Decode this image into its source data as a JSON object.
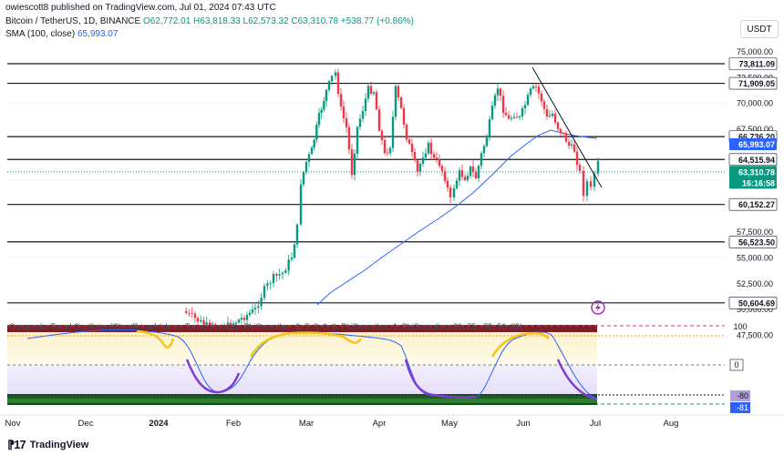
{
  "header": {
    "publisher": "owiescott8 published on TradingView.com, Jul 01, 2024 07:43 UTC",
    "symbol": "Bitcoin / TetherUS, 1D, BINANCE",
    "open": "O62,772.01",
    "high": "H63,818.33",
    "low": "L62,573.32",
    "close": "C63,310.78",
    "change": "+538.77 (+0.86%)",
    "sma_label": "SMA (100, close)",
    "sma_value": "65,993.07"
  },
  "currency": "USDT",
  "price_axis": {
    "ticks": [
      "75,000.00",
      "72,500.00",
      "70,000.00",
      "67,500.00",
      "62,500.00",
      "57,500.00",
      "55,000.00",
      "52,500.00",
      "50,000.00",
      "47,500.00"
    ],
    "levels": [
      {
        "label": "73,811.09",
        "value": 73811.09
      },
      {
        "label": "71,909.05",
        "value": 71909.05
      },
      {
        "label": "66,736.20",
        "value": 66736.2
      },
      {
        "label": "64,515.94",
        "value": 64515.94
      },
      {
        "label": "60,152.27",
        "value": 60152.27
      },
      {
        "label": "56,523.50",
        "value": 56523.5
      },
      {
        "label": "50,604.69",
        "value": 50604.69
      }
    ],
    "sma_tag": "65,993.07",
    "last_price": "63,310.78",
    "countdown": "16:16:58"
  },
  "oscillator": {
    "title": "Composite Trend Oscillator [ChartPrime] (close, Trend Strength, PhiSmoother, 3, 7, 3, 0, 0, PhiSmoother, 1, PhiSmoother, 20, 75, -75, 50, 85)",
    "ticks": [
      "100",
      "0"
    ],
    "value_a": "-80",
    "value_b": "-81"
  },
  "time_axis": [
    "Nov",
    "Dec",
    "2024",
    "Feb",
    "Mar",
    "Apr",
    "May",
    "Jun",
    "Jul",
    "Aug"
  ],
  "brand": "TradingView",
  "chart_data": {
    "type": "candlestick",
    "symbol": "BTCUSDT",
    "interval": "1D",
    "y_range": [
      47000,
      76200
    ],
    "x": [
      "2024-02-15",
      "2024-02-22",
      "2024-02-29",
      "2024-03-07",
      "2024-03-14",
      "2024-03-21",
      "2024-03-28",
      "2024-04-04",
      "2024-04-11",
      "2024-04-18",
      "2024-04-25",
      "2024-05-02",
      "2024-05-09",
      "2024-05-16",
      "2024-05-23",
      "2024-05-30",
      "2024-06-06",
      "2024-06-13",
      "2024-06-20",
      "2024-06-27",
      "2024-07-01"
    ],
    "close": [
      51500,
      51800,
      62500,
      68300,
      69500,
      67200,
      70800,
      68000,
      70500,
      63500,
      64300,
      59100,
      61200,
      66300,
      67900,
      67500,
      71000,
      66500,
      64800,
      61500,
      63310.78
    ],
    "sma100": [
      44500,
      45800,
      47500,
      49500,
      51500,
      53500,
      55200,
      56800,
      58300,
      59700,
      60900,
      61800,
      62700,
      63700,
      64700,
      65400,
      66100,
      66500,
      66400,
      66150,
      65993.07
    ]
  }
}
